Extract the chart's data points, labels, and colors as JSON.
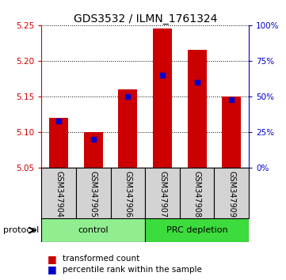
{
  "title": "GDS3532 / ILMN_1761324",
  "samples": [
    "GSM347904",
    "GSM347905",
    "GSM347906",
    "GSM347907",
    "GSM347908",
    "GSM347909"
  ],
  "red_values": [
    5.12,
    5.1,
    5.16,
    5.245,
    5.215,
    5.15
  ],
  "blue_percentile": [
    33,
    20,
    50,
    65,
    60,
    48
  ],
  "y_min": 5.05,
  "y_max": 5.25,
  "y_ticks_left": [
    5.05,
    5.1,
    5.15,
    5.2,
    5.25
  ],
  "y_ticks_right": [
    0,
    25,
    50,
    75,
    100
  ],
  "groups": [
    {
      "label": "control",
      "indices": [
        0,
        1,
        2
      ],
      "color": "#90ee90"
    },
    {
      "label": "PRC depletion",
      "indices": [
        3,
        4,
        5
      ],
      "color": "#3ddc3d"
    }
  ],
  "bar_color": "#cc0000",
  "blue_color": "#0000cc",
  "bar_width": 0.55,
  "title_fontsize": 10,
  "tick_fontsize": 7.5,
  "label_fontsize": 7,
  "background_color": "#ffffff",
  "plot_bg_color": "#ffffff",
  "label_bg_color": "#d3d3d3"
}
